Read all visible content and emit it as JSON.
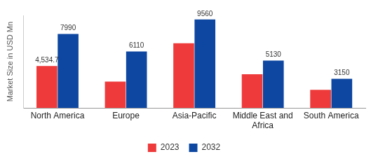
{
  "chart_data": {
    "type": "bar",
    "y_label": "Market Size in USD Mn",
    "categories": [
      "North America",
      "Europe",
      "Asia-Pacific",
      "Middle East and Africa",
      "South America"
    ],
    "series": [
      {
        "name": "2023",
        "color": "#ee3a3a",
        "values": [
          4534.7,
          2860,
          7000,
          3650,
          1970
        ],
        "value_labels": [
          "4,534.7",
          null,
          null,
          null,
          null
        ]
      },
      {
        "name": "2032",
        "color": "#0d47a1",
        "values": [
          7990,
          6110,
          9560,
          5130,
          3150
        ]
      }
    ],
    "ylim": [
      0,
      10000
    ],
    "tick_labels": "x",
    "grid": false,
    "legend": "bottom",
    "data_labels": true
  }
}
